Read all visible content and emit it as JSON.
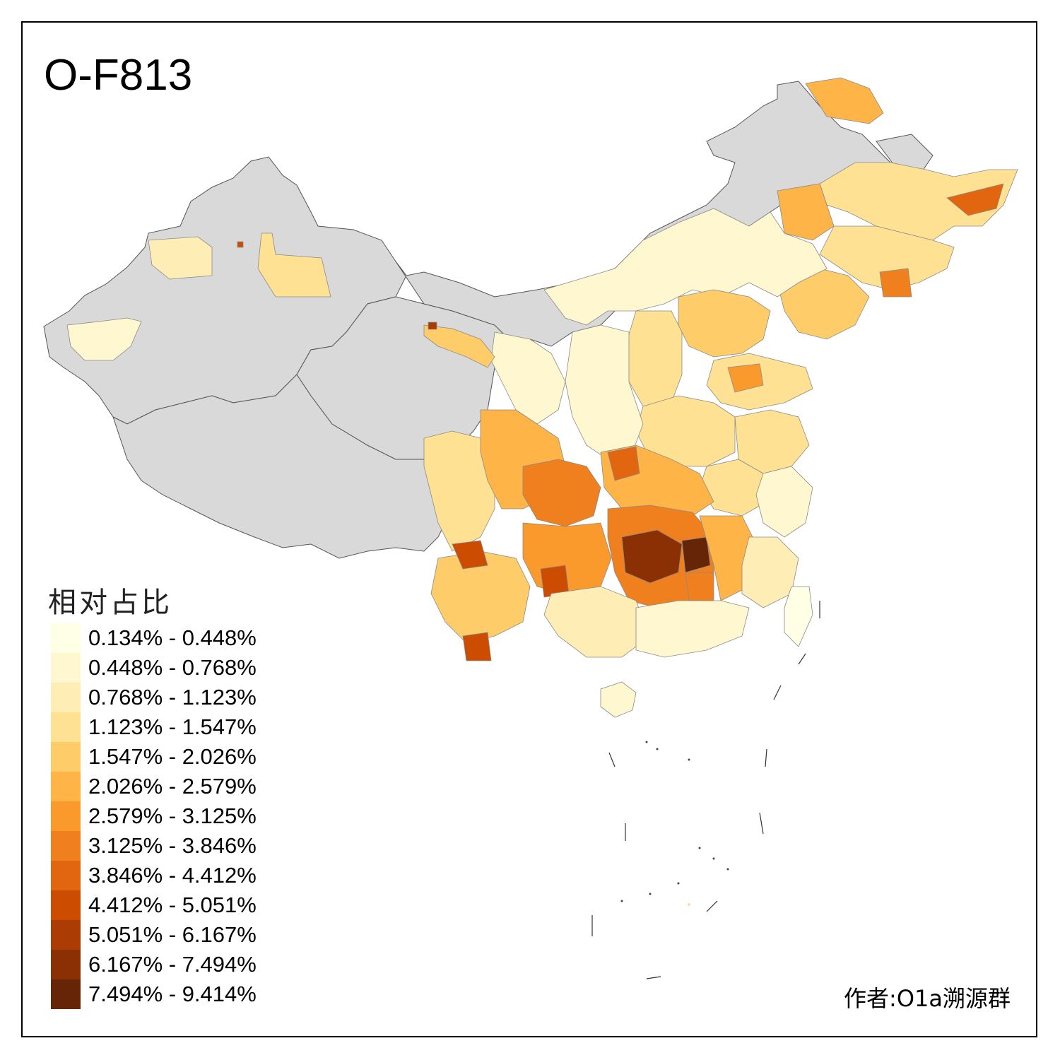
{
  "title": "O-F813",
  "legend": {
    "title": "相对占比",
    "bins": [
      {
        "label": "0.134% - 0.448%",
        "color": "#FFFFE5"
      },
      {
        "label": "0.448% - 0.768%",
        "color": "#FFF7CF"
      },
      {
        "label": "0.768% - 1.123%",
        "color": "#FEEDB4"
      },
      {
        "label": "1.123% - 1.547%",
        "color": "#FEE193"
      },
      {
        "label": "1.547% - 2.026%",
        "color": "#FECC69"
      },
      {
        "label": "2.026% - 2.579%",
        "color": "#FEB446"
      },
      {
        "label": "2.579% - 3.125%",
        "color": "#FB9A2C"
      },
      {
        "label": "3.125% - 3.846%",
        "color": "#F07F1D"
      },
      {
        "label": "3.846% - 4.412%",
        "color": "#E26510"
      },
      {
        "label": "4.412% - 5.051%",
        "color": "#CC4C02"
      },
      {
        "label": "5.051% - 6.167%",
        "color": "#AB3C03"
      },
      {
        "label": "6.167% - 7.494%",
        "color": "#8A3004"
      },
      {
        "label": "7.494% - 9.414%",
        "color": "#662506"
      }
    ]
  },
  "no_data_color": "#D9D9D9",
  "credit": "作者:O1a溯源群"
}
